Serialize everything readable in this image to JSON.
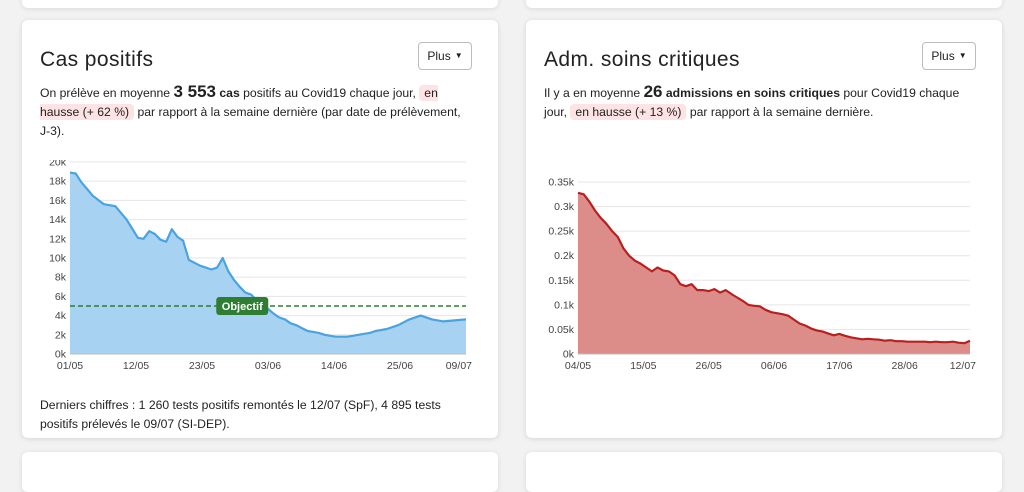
{
  "cards": [
    {
      "title": "Cas positifs",
      "more_label": "Plus",
      "summary": {
        "prefix": "On prélève en moyenne ",
        "value": "3 553",
        "metric": "cas",
        "middle": " positifs au Covid19 chaque jour, ",
        "trend": "en hausse (+ 62 %)",
        "suffix": " par rapport à la semaine dernière (par date de prélèvement, J-3)."
      },
      "footer": "Derniers chiffres : 1 260 tests positifs remontés le 12/07 (SpF), 4 895 tests positifs prélevés le 09/07 (SI-DEP).",
      "objective_label": "Objectif",
      "colors": {
        "line": "#4aa3df",
        "fill": "#a8d2f2",
        "objective": "#2e7d32"
      }
    },
    {
      "title": "Adm. soins critiques",
      "more_label": "Plus",
      "summary": {
        "prefix": "Il y a en moyenne ",
        "value": "26",
        "metric": "admissions en soins critiques",
        "middle": " pour Covid19 chaque jour, ",
        "trend": "en hausse (+ 13 %)",
        "suffix": " par rapport à la semaine dernière."
      },
      "colors": {
        "line": "#b8201e",
        "fill": "#dd8d89"
      }
    }
  ],
  "chart_data": [
    {
      "type": "area",
      "y_ticks": [
        "0k",
        "2k",
        "4k",
        "6k",
        "8k",
        "10k",
        "12k",
        "14k",
        "16k",
        "18k",
        "20k"
      ],
      "x_ticks": [
        "01/05",
        "12/05",
        "23/05",
        "03/06",
        "14/06",
        "25/06",
        "09/07"
      ],
      "ylim": [
        0,
        20000
      ],
      "x_days": [
        0,
        1,
        2,
        3,
        4,
        6,
        8,
        10,
        12,
        13,
        14,
        15,
        16,
        17,
        18,
        19,
        20,
        21,
        22,
        23,
        24,
        25,
        26,
        27,
        28,
        29,
        30,
        31,
        32,
        33,
        34,
        35,
        36,
        37,
        38,
        39,
        40,
        41,
        42,
        43,
        44,
        45,
        46,
        47,
        48,
        49,
        50,
        51,
        52,
        53,
        54,
        56,
        58,
        60,
        62,
        64,
        66,
        68,
        70
      ],
      "values": [
        18900,
        18800,
        17900,
        17200,
        16500,
        15600,
        15400,
        14000,
        12100,
        12000,
        12800,
        12500,
        11900,
        11700,
        13000,
        12200,
        11800,
        9800,
        9500,
        9200,
        9000,
        8800,
        9000,
        10000,
        8600,
        7700,
        7000,
        6400,
        6200,
        5600,
        5100,
        4700,
        4200,
        3800,
        3600,
        3200,
        3000,
        2700,
        2400,
        2300,
        2200,
        2000,
        1900,
        1800,
        1800,
        1800,
        1900,
        2000,
        2100,
        2200,
        2400,
        2600,
        3000,
        3600,
        4000,
        3600,
        3400,
        3500,
        3600
      ],
      "objective": 5000,
      "grid": true
    },
    {
      "type": "area",
      "y_ticks": [
        "0k",
        "0.05k",
        "0.1k",
        "0.15k",
        "0.2k",
        "0.25k",
        "0.3k",
        "0.35k"
      ],
      "x_ticks": [
        "04/05",
        "15/05",
        "26/05",
        "06/06",
        "17/06",
        "28/06",
        "12/07"
      ],
      "ylim": [
        0,
        0.35
      ],
      "x_days": [
        0,
        1,
        2,
        3,
        4,
        5,
        6,
        7,
        8,
        9,
        10,
        11,
        12,
        13,
        14,
        15,
        16,
        17,
        18,
        19,
        20,
        21,
        22,
        23,
        24,
        25,
        26,
        27,
        28,
        29,
        30,
        31,
        32,
        33,
        34,
        35,
        36,
        37,
        38,
        39,
        40,
        41,
        42,
        43,
        44,
        45,
        46,
        47,
        48,
        49,
        50,
        51,
        52,
        53,
        54,
        55,
        56,
        57,
        58,
        59,
        60,
        61,
        62,
        63,
        64,
        65,
        66,
        67,
        68,
        69
      ],
      "values": [
        0.328,
        0.325,
        0.31,
        0.292,
        0.277,
        0.265,
        0.25,
        0.238,
        0.215,
        0.2,
        0.19,
        0.184,
        0.176,
        0.168,
        0.176,
        0.17,
        0.168,
        0.16,
        0.142,
        0.138,
        0.142,
        0.13,
        0.13,
        0.128,
        0.132,
        0.125,
        0.13,
        0.122,
        0.115,
        0.108,
        0.1,
        0.098,
        0.097,
        0.09,
        0.085,
        0.083,
        0.081,
        0.078,
        0.07,
        0.062,
        0.058,
        0.052,
        0.048,
        0.046,
        0.042,
        0.038,
        0.041,
        0.037,
        0.034,
        0.032,
        0.03,
        0.031,
        0.03,
        0.029,
        0.027,
        0.028,
        0.026,
        0.026,
        0.025,
        0.025,
        0.025,
        0.025,
        0.024,
        0.025,
        0.024,
        0.024,
        0.025,
        0.023,
        0.022,
        0.027
      ],
      "grid": true
    }
  ]
}
